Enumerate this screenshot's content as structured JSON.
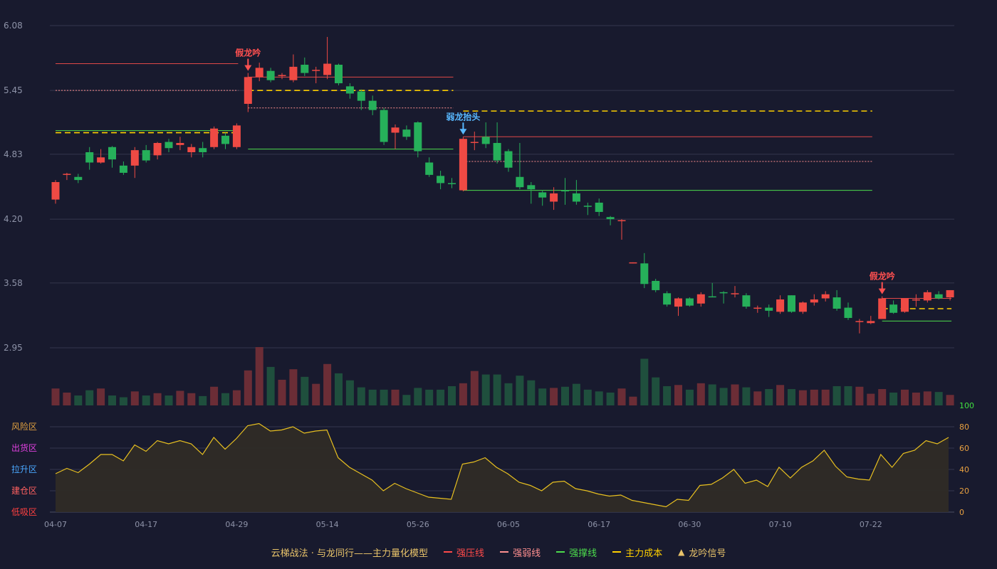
{
  "chart_data": {
    "type": "candlestick",
    "title": "云梯战法 · 与龙同行——主力量化模型",
    "y_ticks": [
      "6.08",
      "5.45",
      "4.83",
      "4.20",
      "3.58",
      "2.95"
    ],
    "ylim": [
      2.95,
      6.08
    ],
    "x_tick_labels": [
      "04-07",
      "04-17",
      "04-29",
      "05-14",
      "05-26",
      "06-05",
      "06-17",
      "06-30",
      "07-10",
      "07-22"
    ],
    "x_tick_indices": [
      0,
      8,
      16,
      24,
      32,
      40,
      48,
      56,
      64,
      72
    ],
    "candles": [
      [
        4.56,
        4.39,
        4.58,
        4.35,
        "up"
      ],
      [
        4.64,
        4.63,
        4.65,
        4.58,
        "up"
      ],
      [
        4.58,
        4.61,
        4.64,
        4.55,
        "down"
      ],
      [
        4.75,
        4.85,
        4.9,
        4.68,
        "down"
      ],
      [
        4.8,
        4.75,
        4.88,
        4.74,
        "up"
      ],
      [
        4.9,
        4.78,
        4.91,
        4.7,
        "down"
      ],
      [
        4.72,
        4.65,
        4.76,
        4.63,
        "down"
      ],
      [
        4.72,
        4.87,
        4.9,
        4.6,
        "up"
      ],
      [
        4.87,
        4.77,
        4.92,
        4.75,
        "down"
      ],
      [
        4.82,
        4.94,
        4.95,
        4.78,
        "up"
      ],
      [
        4.89,
        4.95,
        4.98,
        4.85,
        "down"
      ],
      [
        4.94,
        4.92,
        5.0,
        4.87,
        "up"
      ],
      [
        4.9,
        4.85,
        4.93,
        4.8,
        "up"
      ],
      [
        4.89,
        4.85,
        4.95,
        4.8,
        "down"
      ],
      [
        4.9,
        5.08,
        5.1,
        4.88,
        "up"
      ],
      [
        4.93,
        5.01,
        5.04,
        4.88,
        "down"
      ],
      [
        4.9,
        5.11,
        5.13,
        4.88,
        "up"
      ],
      [
        5.32,
        5.58,
        5.62,
        5.24,
        "up"
      ],
      [
        5.58,
        5.67,
        5.72,
        5.54,
        "up"
      ],
      [
        5.64,
        5.55,
        5.67,
        5.53,
        "down"
      ],
      [
        5.59,
        5.6,
        5.62,
        5.56,
        "up"
      ],
      [
        5.55,
        5.68,
        5.8,
        5.53,
        "up"
      ],
      [
        5.7,
        5.62,
        5.77,
        5.59,
        "down"
      ],
      [
        5.64,
        5.65,
        5.68,
        5.52,
        "up"
      ],
      [
        5.6,
        5.71,
        5.97,
        5.56,
        "up"
      ],
      [
        5.7,
        5.52,
        5.71,
        5.5,
        "down"
      ],
      [
        5.49,
        5.42,
        5.52,
        5.37,
        "down"
      ],
      [
        5.44,
        5.35,
        5.46,
        5.26,
        "down"
      ],
      [
        5.35,
        5.26,
        5.4,
        5.21,
        "down"
      ],
      [
        5.26,
        4.95,
        5.28,
        4.92,
        "down"
      ],
      [
        5.04,
        5.09,
        5.12,
        4.88,
        "up"
      ],
      [
        5.07,
        5.0,
        5.11,
        4.97,
        "down"
      ],
      [
        5.14,
        4.86,
        5.15,
        4.8,
        "down"
      ],
      [
        4.75,
        4.63,
        4.8,
        4.61,
        "down"
      ],
      [
        4.62,
        4.55,
        4.67,
        4.49,
        "down"
      ],
      [
        4.55,
        4.54,
        4.6,
        4.5,
        "down"
      ],
      [
        4.48,
        4.98,
        5.0,
        4.47,
        "up"
      ],
      [
        4.94,
        4.95,
        5.05,
        4.87,
        "up"
      ],
      [
        5.0,
        4.93,
        5.14,
        4.89,
        "down"
      ],
      [
        4.94,
        4.77,
        5.14,
        4.74,
        "down"
      ],
      [
        4.86,
        4.7,
        4.88,
        4.66,
        "down"
      ],
      [
        4.61,
        4.51,
        4.94,
        4.49,
        "down"
      ],
      [
        4.53,
        4.49,
        4.56,
        4.35,
        "down"
      ],
      [
        4.46,
        4.41,
        4.48,
        4.33,
        "down"
      ],
      [
        4.37,
        4.45,
        4.51,
        4.29,
        "up"
      ],
      [
        4.48,
        4.47,
        4.6,
        4.34,
        "down"
      ],
      [
        4.45,
        4.37,
        4.58,
        4.34,
        "down"
      ],
      [
        4.33,
        4.32,
        4.36,
        4.24,
        "down"
      ],
      [
        4.36,
        4.27,
        4.4,
        4.23,
        "down"
      ],
      [
        4.22,
        4.2,
        4.23,
        4.14,
        "down"
      ],
      [
        4.19,
        4.18,
        4.2,
        4.0,
        "up"
      ],
      [
        3.78,
        3.77,
        3.78,
        3.77,
        "up"
      ],
      [
        3.77,
        3.57,
        3.87,
        3.53,
        "down"
      ],
      [
        3.6,
        3.51,
        3.62,
        3.49,
        "down"
      ],
      [
        3.48,
        3.37,
        3.5,
        3.35,
        "down"
      ],
      [
        3.35,
        3.43,
        3.44,
        3.26,
        "up"
      ],
      [
        3.43,
        3.36,
        3.44,
        3.35,
        "down"
      ],
      [
        3.38,
        3.47,
        3.49,
        3.35,
        "up"
      ],
      [
        3.45,
        3.45,
        3.58,
        3.44,
        "down"
      ],
      [
        3.48,
        3.49,
        3.5,
        3.38,
        "down"
      ],
      [
        3.47,
        3.48,
        3.55,
        3.44,
        "up"
      ],
      [
        3.46,
        3.35,
        3.48,
        3.33,
        "down"
      ],
      [
        3.34,
        3.34,
        3.36,
        3.29,
        "up"
      ],
      [
        3.34,
        3.31,
        3.37,
        3.25,
        "down"
      ],
      [
        3.3,
        3.42,
        3.46,
        3.28,
        "up"
      ],
      [
        3.46,
        3.3,
        3.46,
        3.29,
        "down"
      ],
      [
        3.3,
        3.39,
        3.4,
        3.28,
        "up"
      ],
      [
        3.39,
        3.42,
        3.47,
        3.36,
        "up"
      ],
      [
        3.47,
        3.43,
        3.5,
        3.4,
        "up"
      ],
      [
        3.44,
        3.33,
        3.51,
        3.31,
        "down"
      ],
      [
        3.34,
        3.24,
        3.39,
        3.22,
        "down"
      ],
      [
        3.21,
        3.21,
        3.23,
        3.09,
        "up"
      ],
      [
        3.19,
        3.21,
        3.26,
        3.18,
        "up"
      ],
      [
        3.23,
        3.43,
        3.45,
        3.23,
        "up"
      ],
      [
        3.37,
        3.29,
        3.41,
        3.28,
        "down"
      ],
      [
        3.3,
        3.43,
        3.43,
        3.29,
        "up"
      ],
      [
        3.41,
        3.42,
        3.47,
        3.35,
        "up"
      ],
      [
        3.41,
        3.49,
        3.51,
        3.39,
        "up"
      ],
      [
        3.47,
        3.43,
        3.5,
        3.42,
        "down"
      ],
      [
        3.44,
        3.51,
        3.51,
        3.41,
        "up"
      ]
    ],
    "volumes": [
      0.29,
      0.22,
      0.17,
      0.26,
      0.29,
      0.17,
      0.14,
      0.24,
      0.17,
      0.21,
      0.17,
      0.25,
      0.21,
      0.16,
      0.32,
      0.21,
      0.26,
      0.6,
      1.0,
      0.66,
      0.44,
      0.62,
      0.49,
      0.37,
      0.71,
      0.55,
      0.43,
      0.31,
      0.27,
      0.27,
      0.27,
      0.18,
      0.3,
      0.27,
      0.27,
      0.33,
      0.38,
      0.59,
      0.53,
      0.53,
      0.38,
      0.51,
      0.43,
      0.29,
      0.3,
      0.32,
      0.37,
      0.27,
      0.24,
      0.22,
      0.29,
      0.15,
      0.8,
      0.48,
      0.33,
      0.35,
      0.27,
      0.38,
      0.36,
      0.3,
      0.36,
      0.31,
      0.24,
      0.28,
      0.35,
      0.28,
      0.26,
      0.27,
      0.27,
      0.33,
      0.33,
      0.32,
      0.2,
      0.28,
      0.22,
      0.27,
      0.22,
      0.24,
      0.23,
      0.18
    ],
    "indicator": [
      36,
      41,
      37,
      45,
      54,
      54,
      48,
      63,
      57,
      67,
      64,
      67,
      64,
      54,
      70,
      59,
      69,
      81,
      83,
      76,
      77,
      80,
      74,
      76,
      77,
      51,
      42,
      36,
      30,
      20,
      27,
      22,
      18,
      14,
      13,
      12,
      45,
      47,
      51,
      42,
      36,
      28,
      25,
      20,
      28,
      29,
      22,
      20,
      17,
      15,
      16,
      11,
      9,
      7,
      5,
      12,
      11,
      25,
      26,
      32,
      40,
      27,
      30,
      24,
      42,
      32,
      42,
      48,
      58,
      43,
      33,
      31,
      30,
      54,
      42,
      55,
      58,
      67,
      64,
      70
    ],
    "indicator_axis": [
      "100",
      "80",
      "60",
      "40",
      "20",
      "0"
    ],
    "zones": [
      {
        "label": "风险区",
        "color": "#e0a040"
      },
      {
        "label": "出货区",
        "color": "#e040e0"
      },
      {
        "label": "拉升区",
        "color": "#4aa8ff"
      },
      {
        "label": "建仓区",
        "color": "#ff6060"
      },
      {
        "label": "低吸区",
        "color": "#ff4040"
      }
    ],
    "signals": [
      {
        "label": "假龙吟",
        "index": 17,
        "price": 5.62,
        "color": "#ff5050"
      },
      {
        "label": "弱龙抬头",
        "index": 36,
        "price": 5.0,
        "color": "#58b8ff"
      },
      {
        "label": "假龙吟",
        "index": 73,
        "price": 3.45,
        "color": "#ff5050"
      }
    ],
    "segments": [
      {
        "kind": "resist",
        "from": 0,
        "to": 16,
        "price": 5.71
      },
      {
        "kind": "weak",
        "from": 0,
        "to": 16,
        "price": 5.45
      },
      {
        "kind": "support",
        "from": 0,
        "to": 16,
        "price": 5.06
      },
      {
        "kind": "cost",
        "from": 0,
        "to": 16,
        "price": 5.04
      },
      {
        "kind": "resist",
        "from": 17,
        "to": 35,
        "price": 5.58
      },
      {
        "kind": "cost",
        "from": 17,
        "to": 35,
        "price": 5.45
      },
      {
        "kind": "weak",
        "from": 17,
        "to": 35,
        "price": 5.28
      },
      {
        "kind": "support",
        "from": 17,
        "to": 35,
        "price": 4.88
      },
      {
        "kind": "cost",
        "from": 36,
        "to": 72,
        "price": 5.25
      },
      {
        "kind": "resist",
        "from": 36,
        "to": 72,
        "price": 5.0
      },
      {
        "kind": "weak",
        "from": 36,
        "to": 72,
        "price": 4.76
      },
      {
        "kind": "support",
        "from": 36,
        "to": 72,
        "price": 4.48
      },
      {
        "kind": "resist",
        "from": 73,
        "to": 79,
        "price": 3.43
      },
      {
        "kind": "cost",
        "from": 73,
        "to": 79,
        "price": 3.33
      },
      {
        "kind": "support",
        "from": 73,
        "to": 79,
        "price": 3.21
      }
    ],
    "legend": [
      {
        "label": "强压线",
        "kind": "resist",
        "color": "#ff4a4a"
      },
      {
        "label": "强弱线",
        "kind": "weak",
        "color": "#ff9090"
      },
      {
        "label": "强撑线",
        "kind": "support",
        "color": "#4cdc4c"
      },
      {
        "label": "主力成本",
        "kind": "cost",
        "color": "#ffd000"
      },
      {
        "label": "龙吟信号",
        "kind": "signal",
        "color": "#e8c36a"
      }
    ],
    "colors": {
      "up": "#ef4a44",
      "down": "#26b05a",
      "vol_up": "#6b2d36",
      "vol_down": "#1f4f3d",
      "grid": "#34374d",
      "axis_text": "#8e93a8",
      "indicator_line": "#e8c020",
      "indicator_fill": "#2f2b26",
      "indicator_axis_text": "#e8a040",
      "indicator_top": "#40e040"
    }
  }
}
